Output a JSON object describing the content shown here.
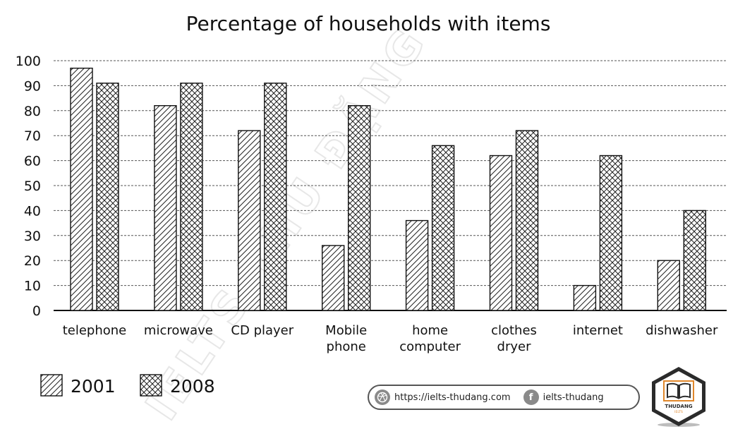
{
  "chart_data": {
    "type": "bar",
    "title": "Percentage of households with items",
    "xlabel": "",
    "ylabel": "",
    "ylim": [
      0,
      100
    ],
    "yticks": [
      "0",
      "10",
      "20",
      "30",
      "40",
      "50",
      "60",
      "70",
      "80",
      "90",
      "100"
    ],
    "grid": true,
    "legend_position": "bottom-left",
    "categories": [
      [
        "telephone"
      ],
      [
        "microwave"
      ],
      [
        "CD player"
      ],
      [
        "Mobile",
        "phone"
      ],
      [
        "home",
        "computer"
      ],
      [
        "clothes",
        "dryer"
      ],
      [
        "internet"
      ],
      [
        "dishwasher"
      ]
    ],
    "series": [
      {
        "name": "2001",
        "pattern": "diagonal-hatch",
        "values": [
          97,
          82,
          72,
          26,
          36,
          62,
          10,
          20
        ]
      },
      {
        "name": "2008",
        "pattern": "cross-hatch",
        "values": [
          91,
          91,
          91,
          82,
          66,
          72,
          62,
          40
        ]
      }
    ]
  },
  "watermark": "IELTS THU ĐẶNG",
  "footer": {
    "website_icon": "dribbble-ball-icon",
    "website": "https://ielts-thudang.com",
    "facebook_icon": "facebook-icon",
    "facebook_glyph": "f",
    "facebook": "ielts-thudang"
  },
  "logo": {
    "icon": "open-book-icon",
    "name": "THUDANG",
    "tag": "IELTS",
    "colors": {
      "outline": "#2b2b2b",
      "accent": "#e0872b",
      "background": "#ffffff"
    }
  }
}
